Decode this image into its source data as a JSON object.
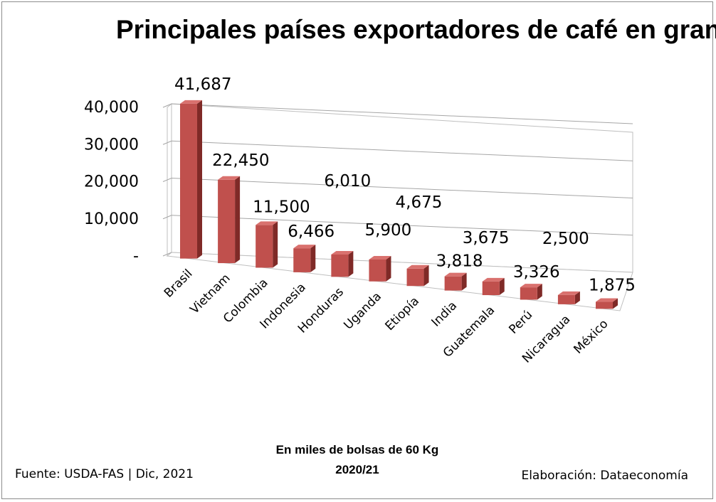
{
  "chart_data": {
    "type": "bar",
    "title": "Principales países exportadores de café en grano",
    "categories": [
      "Brasil",
      "Vietnam",
      "Colombia",
      "Indonesia",
      "Honduras",
      "Uganda",
      "Etiopía",
      "India",
      "Guatemala",
      "Perú",
      "Nicaragua",
      "México"
    ],
    "series": [
      {
        "values": [
          41687,
          22450,
          11500,
          6466,
          6010,
          5900,
          4675,
          3818,
          3675,
          3326,
          2500,
          1875
        ]
      }
    ],
    "data_labels": [
      "41,687",
      "22,450",
      "11,500",
      "6,466",
      "6,010",
      "5,900",
      "4,675",
      "3,818",
      "3,675",
      "3,326",
      "2,500",
      "1,875"
    ],
    "y_ticks": [
      0,
      10000,
      20000,
      30000,
      40000
    ],
    "y_tick_labels": [
      "-",
      "10,000",
      "20,000",
      "30,000",
      "40,000"
    ],
    "ylim": [
      0,
      40000
    ],
    "grid": true,
    "style": "3d-column",
    "bar_color": "#c0504d",
    "unit_note": "En miles de bolsas de 60 Kg",
    "period": "2020/21"
  },
  "footer": {
    "source": "Fuente:  USDA-FAS | Dic, 2021",
    "credit": "Elaboración: Dataeconomía"
  }
}
